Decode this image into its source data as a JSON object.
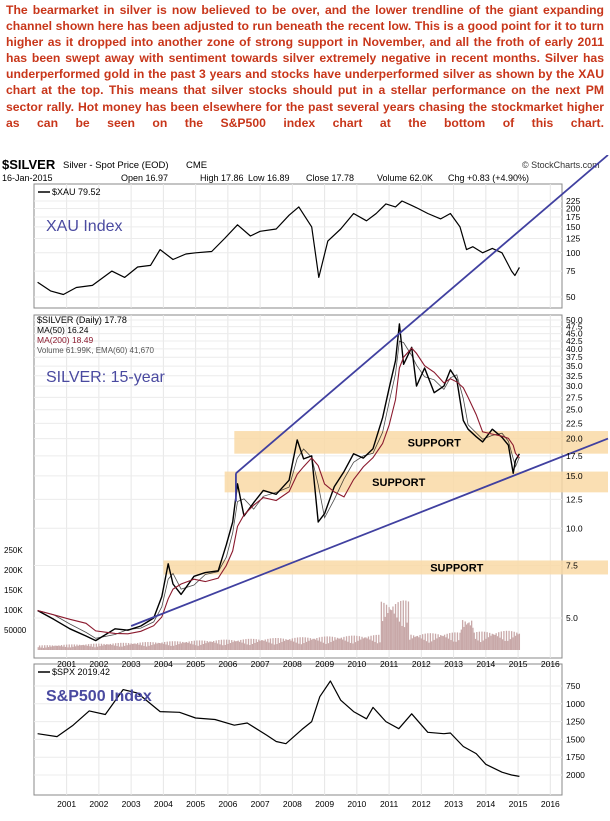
{
  "commentary": "The bearmarket in silver is now believed to be over, and the lower trendline of the giant expanding channel shown here has been adjusted to run beneath the recent low. This is a good point for it to turn higher as it dropped into another zone of strong support in November, and all the froth of early 2011 has been swept away with sentiment towards silver extremely negative in recent months. Silver has underperformed gold in the past 3 years and stocks have underperformed silver as shown by the XAU chart at the top. This means that silver stocks should put in a stellar performance on the next PM sector rally. Hot money has been elsewhere for the past several years chasing the stockmarket higher as can be seen on the S&P500 index chart at the bottom of this chart.",
  "header": {
    "symbol": "$SILVER",
    "description": "Silver - Spot Price (EOD)",
    "exchange": "CME",
    "brand": "© StockCharts.com",
    "date": "16-Jan-2015",
    "open": "Open 16.97",
    "high": "High 17.86",
    "low": "Low 16.89",
    "close": "Close 17.78",
    "volume": "Volume 62.0K",
    "change": "Chg +0.83 (+4.90%)"
  },
  "colors": {
    "commentary": "#c8361a",
    "price": "#000000",
    "ma50": "#000000",
    "ma200": "#8b1a2e",
    "trendline": "#4040a0",
    "support_band": "#f9d9a6",
    "volume": "#c8a8a8",
    "annotation": "#4a4aa0"
  },
  "chart_data": [
    {
      "type": "line",
      "symbol": "$XAU",
      "legend": "$XAU 79.52",
      "annotation": "XAU Index",
      "y_ticks": [
        "225",
        "200",
        "175",
        "150",
        "125",
        "100",
        "75",
        "50"
      ],
      "y_tick_values": [
        225,
        200,
        175,
        150,
        125,
        100,
        75,
        50
      ],
      "log_scale": true,
      "x": [
        2000.1,
        2000.5,
        2000.9,
        2001.3,
        2001.8,
        2002.4,
        2002.8,
        2003.2,
        2003.6,
        2003.9,
        2004.3,
        2004.7,
        2005.0,
        2005.5,
        2005.9,
        2006.3,
        2006.7,
        2007.0,
        2007.5,
        2007.9,
        2008.2,
        2008.6,
        2008.82,
        2009.1,
        2009.5,
        2009.9,
        2010.3,
        2010.6,
        2010.9,
        2011.2,
        2011.4,
        2011.7,
        2011.9,
        2012.2,
        2012.6,
        2012.9,
        2013.2,
        2013.4,
        2013.6,
        2013.9,
        2014.2,
        2014.5,
        2014.8,
        2014.9,
        2015.04
      ],
      "values": [
        63,
        55,
        52,
        58,
        60,
        75,
        68,
        80,
        82,
        105,
        90,
        98,
        100,
        102,
        125,
        155,
        130,
        140,
        145,
        180,
        205,
        150,
        68,
        120,
        145,
        185,
        165,
        185,
        215,
        205,
        225,
        210,
        200,
        185,
        170,
        185,
        150,
        105,
        110,
        100,
        107,
        100,
        75,
        70,
        79.52
      ]
    },
    {
      "type": "line",
      "symbol": "$SILVER",
      "legend": [
        "$SILVER (Daily) 17.78",
        "MA(50) 16.24",
        "MA(200) 18.49",
        "Volume 61.99K, EMA(60) 41,670"
      ],
      "annotation": "SILVER: 15-year",
      "y_ticks": [
        "50.0",
        "47.5",
        "45.0",
        "42.5",
        "40.0",
        "37.5",
        "35.0",
        "32.5",
        "30.0",
        "27.5",
        "25.0",
        "22.5",
        "20.0",
        "17.5",
        "15.0",
        "12.5",
        "10.0",
        "7.5",
        "5.0"
      ],
      "y_tick_values": [
        50,
        47.5,
        45,
        42.5,
        40,
        37.5,
        35,
        32.5,
        30,
        27.5,
        25,
        22.5,
        20,
        17.5,
        15,
        12.5,
        10,
        7.5,
        5
      ],
      "volume_ticks": [
        "250K",
        "200K",
        "150K",
        "100K",
        "50000"
      ],
      "volume_tick_values": [
        250000,
        200000,
        150000,
        100000,
        50000
      ],
      "log_scale": true,
      "x": [
        2000.1,
        2000.6,
        2001.1,
        2001.6,
        2001.9,
        2002.5,
        2002.9,
        2003.3,
        2003.7,
        2003.95,
        2004.15,
        2004.3,
        2004.55,
        2004.95,
        2005.3,
        2005.7,
        2005.95,
        2006.15,
        2006.3,
        2006.5,
        2006.8,
        2007.1,
        2007.5,
        2007.9,
        2008.15,
        2008.35,
        2008.6,
        2008.8,
        2009.0,
        2009.3,
        2009.6,
        2009.9,
        2010.2,
        2010.5,
        2010.8,
        2011.0,
        2011.2,
        2011.32,
        2011.45,
        2011.7,
        2011.85,
        2012.1,
        2012.4,
        2012.7,
        2012.9,
        2013.1,
        2013.3,
        2013.45,
        2013.7,
        2013.9,
        2014.2,
        2014.5,
        2014.7,
        2014.85,
        2014.92,
        2015.04
      ],
      "values": [
        5.3,
        4.95,
        4.6,
        4.35,
        4.2,
        4.6,
        4.55,
        4.7,
        5.0,
        5.9,
        7.6,
        6.5,
        6.0,
        6.9,
        7.1,
        7.2,
        8.8,
        10.5,
        14.1,
        11.0,
        12.2,
        13.4,
        13.0,
        14.5,
        19.8,
        17.1,
        17.5,
        10.5,
        11.2,
        13.8,
        15.5,
        17.8,
        17.2,
        18.5,
        23.5,
        29.5,
        36.5,
        48.5,
        35.5,
        40.5,
        30.0,
        34.5,
        28.5,
        30.0,
        34.0,
        31.5,
        23.0,
        21.5,
        20.3,
        19.5,
        21.5,
        20.2,
        19.0,
        15.3,
        16.9,
        17.78
      ],
      "support_zones": [
        {
          "label": "SUPPORT",
          "low": 17.8,
          "high": 21.2
        },
        {
          "label": "SUPPORT",
          "low": 13.2,
          "high": 15.5
        },
        {
          "label": "",
          "low": 7.4,
          "high": 8.2
        },
        {
          "label": "SUPPORT",
          "low": 7.0,
          "high": 7.8
        }
      ]
    },
    {
      "type": "line",
      "symbol": "$SPX",
      "legend": "$SPX 2019.42",
      "annotation": "S&P500 Index",
      "y_ticks": [
        "2000",
        "1750",
        "1500",
        "1250",
        "1000",
        "750"
      ],
      "y_tick_values": [
        2000,
        1750,
        1500,
        1250,
        1000,
        750
      ],
      "x": [
        2000.1,
        2000.7,
        2001.2,
        2001.7,
        2002.2,
        2002.75,
        2003.2,
        2003.9,
        2004.5,
        2005.0,
        2005.6,
        2006.2,
        2006.6,
        2007.2,
        2007.5,
        2007.8,
        2008.3,
        2008.6,
        2008.85,
        2009.18,
        2009.5,
        2009.9,
        2010.3,
        2010.5,
        2010.9,
        2011.3,
        2011.7,
        2012.2,
        2012.7,
        2012.9,
        2013.3,
        2013.7,
        2014.0,
        2014.5,
        2014.8,
        2015.04
      ],
      "values": [
        1420,
        1460,
        1300,
        1100,
        1150,
        800,
        850,
        1110,
        1120,
        1200,
        1220,
        1300,
        1270,
        1440,
        1530,
        1560,
        1360,
        1250,
        900,
        680,
        950,
        1110,
        1210,
        1050,
        1250,
        1350,
        1140,
        1400,
        1420,
        1410,
        1600,
        1700,
        1850,
        1960,
        2000,
        2019.42
      ]
    }
  ],
  "x_axis": {
    "labels": [
      "2001",
      "2002",
      "2003",
      "2004",
      "2005",
      "2006",
      "2007",
      "2008",
      "2009",
      "2010",
      "2011",
      "2012",
      "2013",
      "2014",
      "2015",
      "2016"
    ],
    "values": [
      2001,
      2002,
      2003,
      2004,
      2005,
      2006,
      2007,
      2008,
      2009,
      2010,
      2011,
      2012,
      2013,
      2014,
      2015,
      2016
    ]
  }
}
